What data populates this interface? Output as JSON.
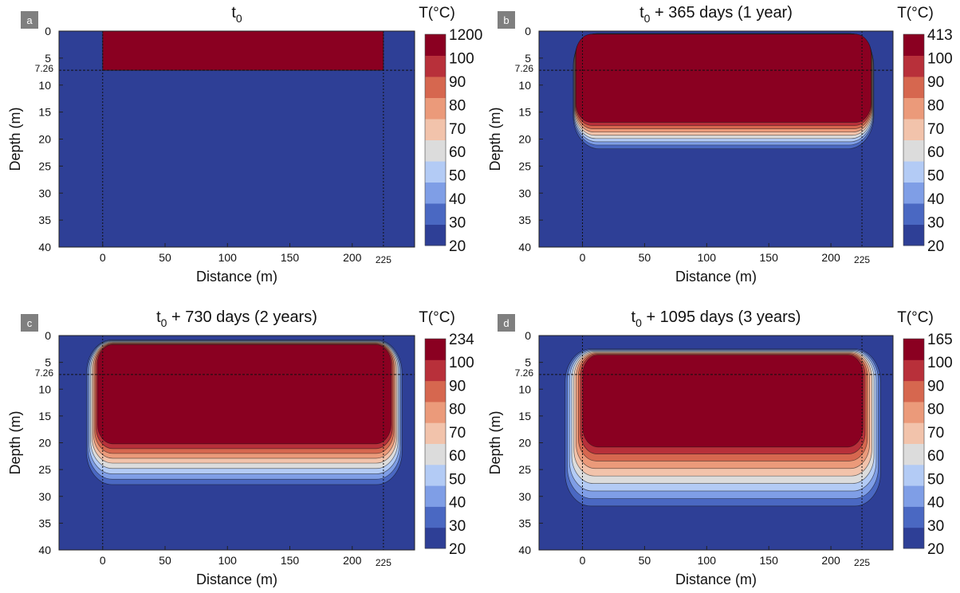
{
  "colors": {
    "background": "#2e3f96",
    "palette": [
      "#2e3f96",
      "#4a68c2",
      "#7f9ee6",
      "#b3cbf5",
      "#dcdcdc",
      "#f2c3ab",
      "#eb9a7a",
      "#d6674f",
      "#b8303a",
      "#8a0021"
    ]
  },
  "colorbar": {
    "label": "T(°C)",
    "levels": [
      20,
      30,
      40,
      50,
      60,
      70,
      80,
      90,
      100
    ]
  },
  "axes": {
    "xlabel": "Distance (m)",
    "ylabel": "Depth (m)",
    "xticks": [
      "0",
      "50",
      "100",
      "150",
      "200"
    ],
    "xtick_extra": "225",
    "yticks": [
      "0",
      "5",
      "10",
      "15",
      "20",
      "25",
      "30",
      "35",
      "40"
    ],
    "ytick_extra": "7.26"
  },
  "chart_data": [
    {
      "type": "heatmap",
      "panel": "a",
      "title_base": "t",
      "title_sub": "0",
      "title_suffix": "",
      "xlim": [
        -35,
        250
      ],
      "ylim": [
        40,
        0
      ],
      "reference_lines": {
        "x": [
          0,
          225
        ],
        "y": 7.26
      },
      "max_temperature": "1200",
      "front_depths": [],
      "core": {
        "x0": 0,
        "x1": 225,
        "y0": 0,
        "y1": 7.26
      },
      "spread": {
        "side": 0,
        "top": 0,
        "bottom": 0
      }
    },
    {
      "type": "heatmap",
      "panel": "b",
      "title_base": "t",
      "title_sub": "0",
      "title_suffix": " + 365 days  (1 year)",
      "xlim": [
        -35,
        250
      ],
      "ylim": [
        40,
        0
      ],
      "reference_lines": {
        "x": [
          0,
          225
        ],
        "y": 7.26
      },
      "max_temperature": "413",
      "front_depths": [
        21.8,
        21.1,
        20.5,
        19.9,
        19.3,
        18.7,
        18.1,
        17.5,
        16.9
      ],
      "core": {
        "x0": -5,
        "x1": 232,
        "y0": 0.6,
        "y1": 16.9
      },
      "spread": {
        "side": 2.5,
        "top": 0.15,
        "bottom": 4.9
      }
    },
    {
      "type": "heatmap",
      "panel": "c",
      "title_base": "t",
      "title_sub": "0",
      "title_suffix": " + 730 days (2 years)",
      "xlim": [
        -35,
        250
      ],
      "ylim": [
        40,
        0
      ],
      "reference_lines": {
        "x": [
          0,
          225
        ],
        "y": 7.26
      },
      "max_temperature": "234",
      "front_depths": [
        27.8,
        26.8,
        25.8,
        24.8,
        23.8,
        22.9,
        22.0,
        21.1,
        20.2
      ],
      "core": {
        "x0": -3,
        "x1": 230,
        "y0": 1.8,
        "y1": 20.2
      },
      "spread": {
        "side": 10,
        "top": 1.0,
        "bottom": 7.6
      }
    },
    {
      "type": "heatmap",
      "panel": "d",
      "title_base": "t",
      "title_sub": "0",
      "title_suffix": " + 1095 days (3 years)",
      "xlim": [
        -35,
        250
      ],
      "ylim": [
        40,
        0
      ],
      "reference_lines": {
        "x": [
          0,
          225
        ],
        "y": 7.26
      },
      "max_temperature": "165",
      "front_depths": [
        31.8,
        30.4,
        29.0,
        27.6,
        26.2,
        24.8,
        23.4,
        22.1,
        20.8
      ],
      "core": {
        "x0": 2,
        "x1": 224,
        "y0": 3.8,
        "y1": 20.8
      },
      "spread": {
        "side": 16,
        "top": 1.3,
        "bottom": 11
      }
    }
  ]
}
